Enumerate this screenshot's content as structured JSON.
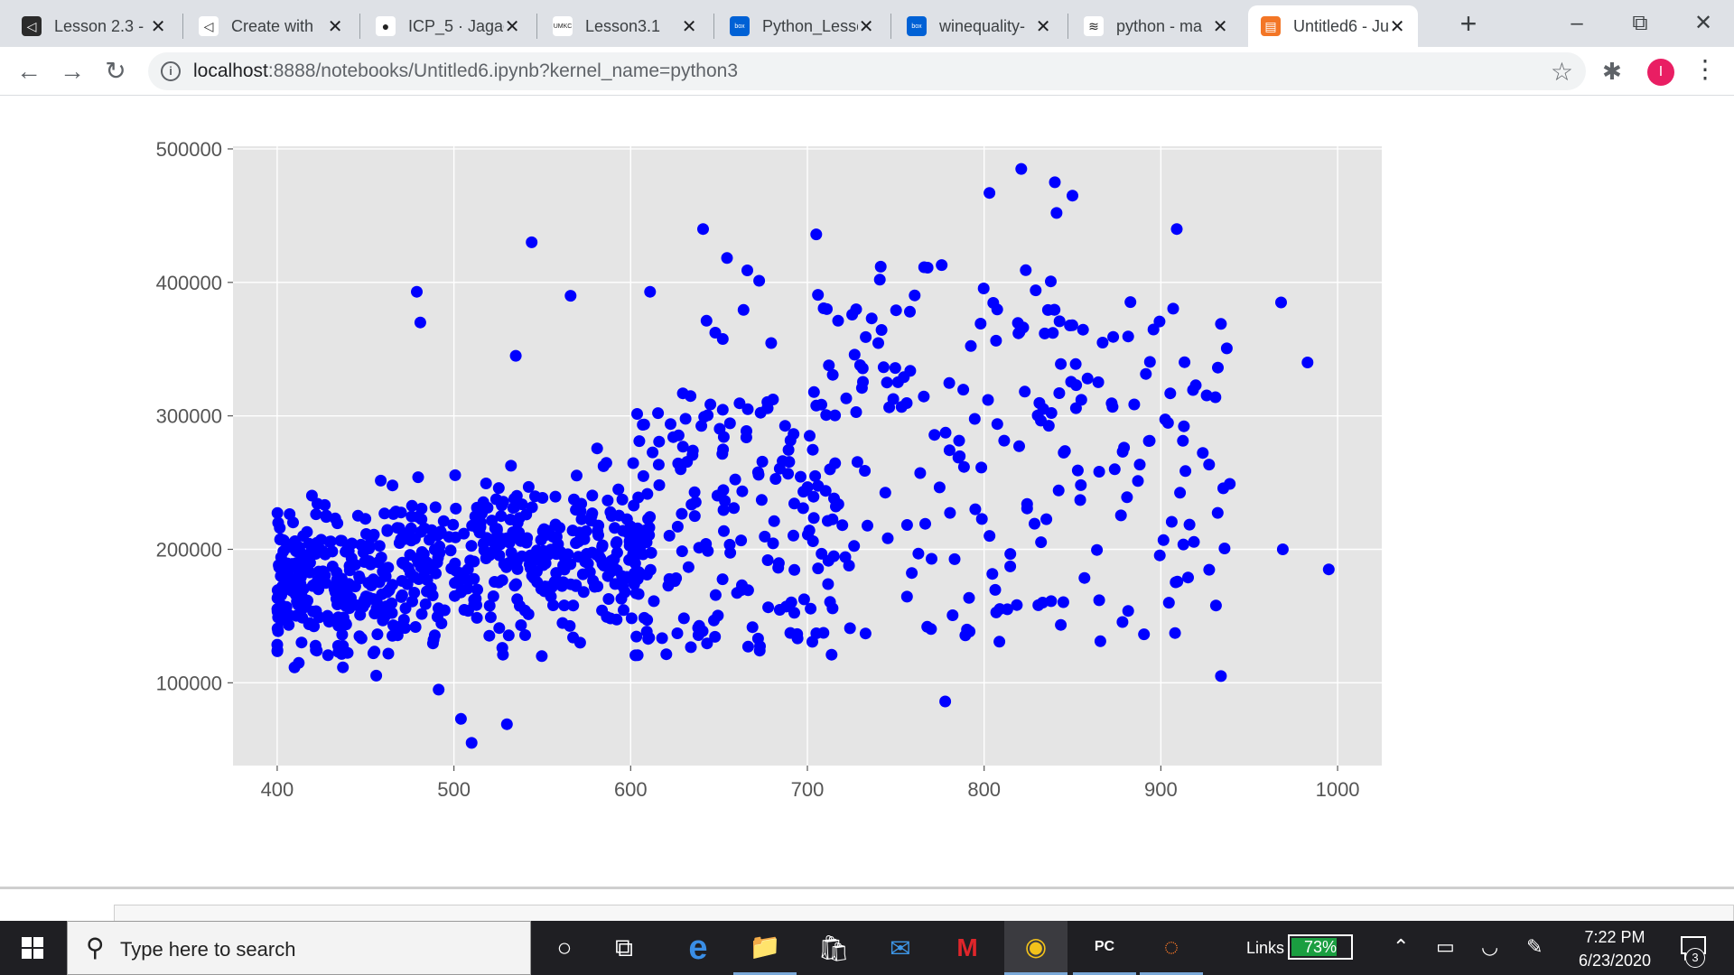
{
  "browser": {
    "tabs": [
      {
        "label": "Lesson 2.3 -",
        "icon": "visual-studio-icon",
        "color": "#2b2b2b",
        "glyph": "◁"
      },
      {
        "label": "Create with",
        "icon": "visual-studio-icon",
        "color": "#ffffff",
        "glyph": "◁"
      },
      {
        "label": "ICP_5 · Jagad",
        "icon": "github-icon",
        "color": "#ffffff",
        "glyph": "●"
      },
      {
        "label": "Lesson3.1",
        "icon": "umkc-icon",
        "color": "#ffffff",
        "glyph": "UMKC"
      },
      {
        "label": "Python_Lesso",
        "icon": "box-icon",
        "color": "#0061d5",
        "glyph": "box"
      },
      {
        "label": "winequality-",
        "icon": "box-icon",
        "color": "#0061d5",
        "glyph": "box"
      },
      {
        "label": "python - ma",
        "icon": "stackoverflow-icon",
        "color": "#ffffff",
        "glyph": "≋"
      },
      {
        "label": "Untitled6 - Ju",
        "icon": "jupyter-icon",
        "color": "#f37626",
        "glyph": "▤"
      }
    ],
    "active_tab_index": 7,
    "new_tab": "+",
    "url_host": "localhost",
    "url_rest": ":8888/notebooks/Untitled6.ipynb?kernel_name=python3",
    "profile_initial": "I"
  },
  "chart_data": {
    "type": "scatter",
    "title": "",
    "xlabel": "",
    "ylabel": "",
    "xlim": [
      375,
      1025
    ],
    "ylim": [
      38000,
      502000
    ],
    "xticks": [
      400,
      500,
      600,
      700,
      800,
      900,
      1000
    ],
    "yticks": [
      100000,
      200000,
      300000,
      400000,
      500000
    ],
    "x_tick_labels": [
      "400",
      "500",
      "600",
      "700",
      "800",
      "900",
      "1000"
    ],
    "y_tick_labels": [
      "100000",
      "200000",
      "300000",
      "400000",
      "500000"
    ],
    "grid": true,
    "point_color": "#0000ff",
    "background": "#e5e5e5",
    "sampled_outliers": {
      "x": [
        544,
        641,
        705,
        666,
        741,
        758,
        821,
        840,
        850,
        803,
        909,
        841,
        968,
        983,
        995,
        934,
        969,
        510,
        504,
        530,
        778,
        939,
        479,
        481,
        535,
        566,
        611,
        733,
        745,
        768,
        776,
        711
      ],
      "y": [
        430000,
        440000,
        436000,
        409000,
        402000,
        378000,
        485000,
        475000,
        465000,
        467000,
        440000,
        452000,
        385000,
        340000,
        185000,
        105000,
        200000,
        55000,
        73000,
        69000,
        86000,
        249000,
        393000,
        370000,
        345000,
        390000,
        393000,
        359000,
        325000,
        411000,
        413000,
        380000
      ]
    }
  },
  "notebook": {
    "cell_prompt": ""
  },
  "taskbar": {
    "search_placeholder": "Type here to search",
    "apps": [
      {
        "name": "cortana-icon",
        "glyph": "○"
      },
      {
        "name": "task-view-icon",
        "glyph": "⧉"
      },
      {
        "name": "edge-icon",
        "glyph": "e"
      },
      {
        "name": "file-explorer-icon",
        "glyph": "📁"
      },
      {
        "name": "store-icon",
        "glyph": "🛍"
      },
      {
        "name": "mail-icon",
        "glyph": "✉"
      },
      {
        "name": "mcafee-icon",
        "glyph": "M"
      },
      {
        "name": "chrome-icon",
        "glyph": "◉"
      },
      {
        "name": "pycharm-icon",
        "glyph": "PC"
      },
      {
        "name": "jupyter-taskbar-icon",
        "glyph": "◌"
      }
    ],
    "links_label": "Links",
    "battery_percent": 73,
    "battery_label": "73%",
    "time": "7:22 PM",
    "date": "6/23/2020",
    "notification_count": "3"
  }
}
